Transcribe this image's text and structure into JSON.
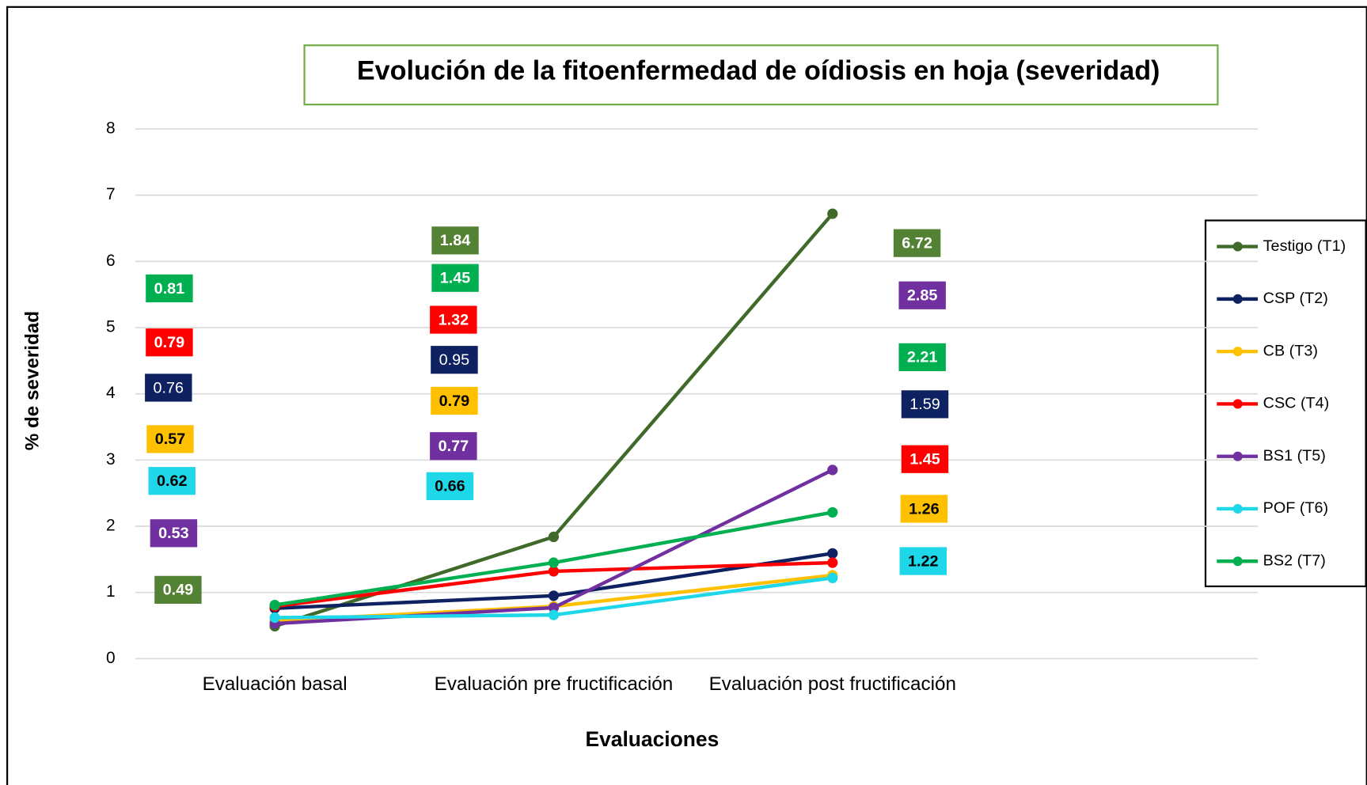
{
  "chart_data": {
    "type": "line",
    "title": "Evolución de la fitoenfermedad de oídiosis en hoja (severidad)",
    "x_label": "Evaluaciones",
    "y_label": "% de severidad",
    "categories": [
      "Evaluación basal",
      "Evaluación pre fructificación",
      "Evaluación post fructificación"
    ],
    "series": [
      {
        "name": "Testigo (T1)",
        "color": "#3f6a2a",
        "values": [
          0.49,
          1.84,
          6.72
        ]
      },
      {
        "name": "CSP (T2)",
        "color": "#0e2160",
        "values": [
          0.76,
          0.95,
          1.59
        ]
      },
      {
        "name": "CB (T3)",
        "color": "#ffc000",
        "values": [
          0.57,
          0.79,
          1.26
        ]
      },
      {
        "name": "CSC (T4)",
        "color": "#ff0000",
        "values": [
          0.79,
          1.32,
          1.45
        ]
      },
      {
        "name": "BS1 (T5)",
        "color": "#7030a0",
        "values": [
          0.53,
          0.77,
          2.85
        ]
      },
      {
        "name": "POF (T6)",
        "color": "#1ed7e8",
        "values": [
          0.62,
          0.66,
          1.22
        ]
      },
      {
        "name": "BS2 (T7)",
        "color": "#00b050",
        "values": [
          0.81,
          1.45,
          2.21
        ]
      }
    ],
    "ylim": [
      0,
      8
    ],
    "yticks": [
      0,
      1,
      2,
      3,
      4,
      5,
      6,
      7,
      8
    ],
    "grid": true,
    "legend": "right"
  }
}
